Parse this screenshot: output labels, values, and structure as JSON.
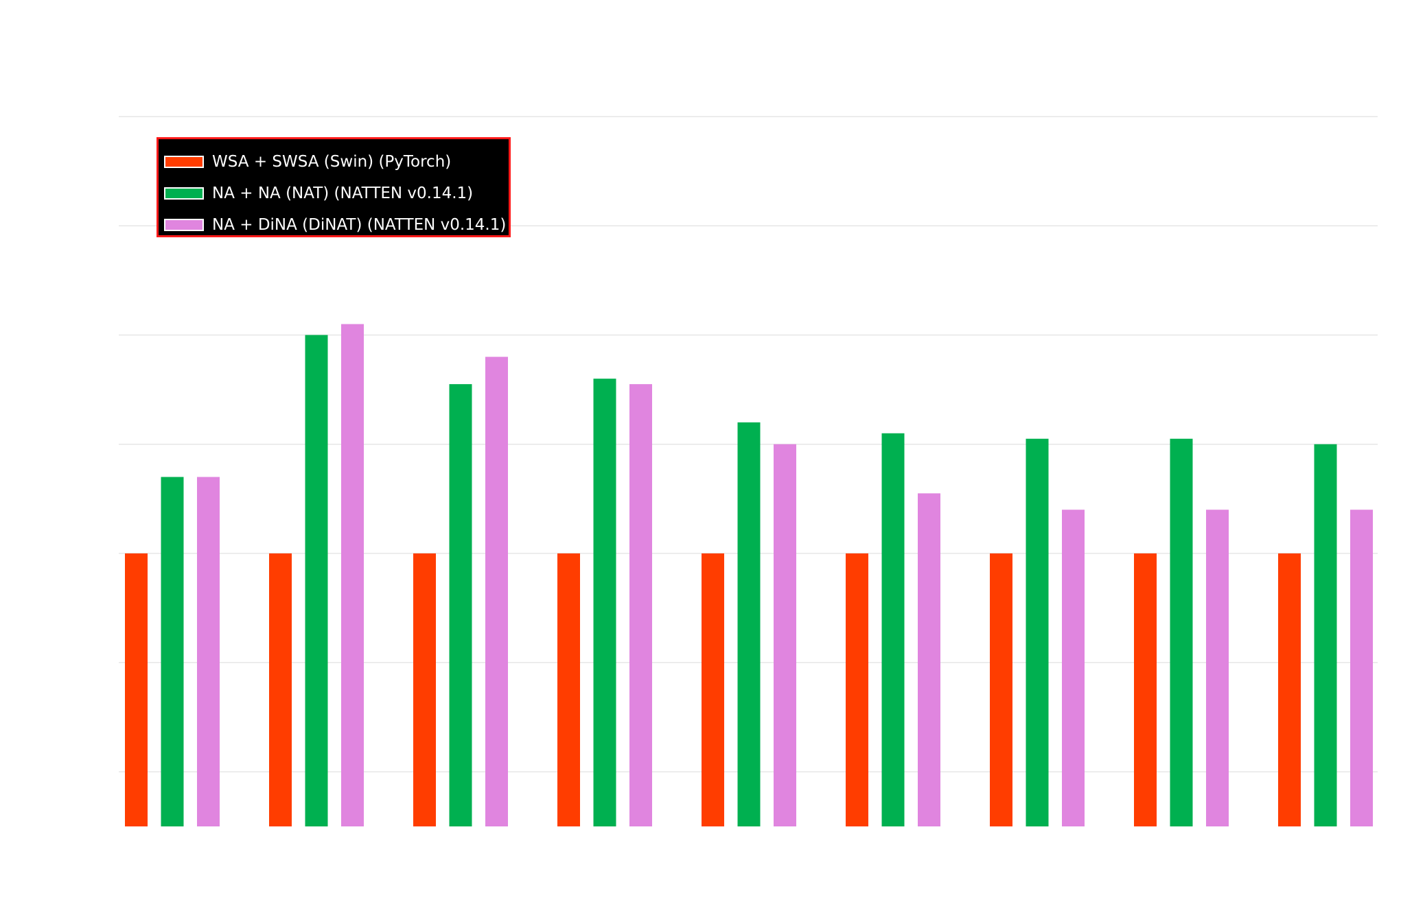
{
  "chart_data": {
    "type": "bar",
    "title": "",
    "xlabel": "",
    "ylabel": "",
    "categories": [
      "",
      "",
      "",
      "",
      "",
      "",
      "",
      "",
      ""
    ],
    "ylim": [
      0,
      6.5
    ],
    "grid": true,
    "gridlines": [
      0.5,
      1.5,
      2.5,
      3.5,
      4.5,
      5.5,
      6.5
    ],
    "legend_position": "top-left",
    "series": [
      {
        "name": "WSA + SWSA (Swin) (PyTorch)",
        "color": "#ff3d00",
        "values": [
          2.5,
          2.5,
          2.5,
          2.5,
          2.5,
          2.5,
          2.5,
          2.5,
          2.5
        ]
      },
      {
        "name": "NA + NA (NAT) (NATTEN v0.14.1)",
        "color": "#00b050",
        "values": [
          3.2,
          4.5,
          4.05,
          4.1,
          3.7,
          3.6,
          3.55,
          3.55,
          3.5
        ]
      },
      {
        "name": "NA + DiNA (DiNAT) (NATTEN v0.14.1)",
        "color": "#e085df",
        "values": [
          3.2,
          4.6,
          4.3,
          4.05,
          3.5,
          3.05,
          2.9,
          2.9,
          2.9
        ]
      }
    ]
  }
}
